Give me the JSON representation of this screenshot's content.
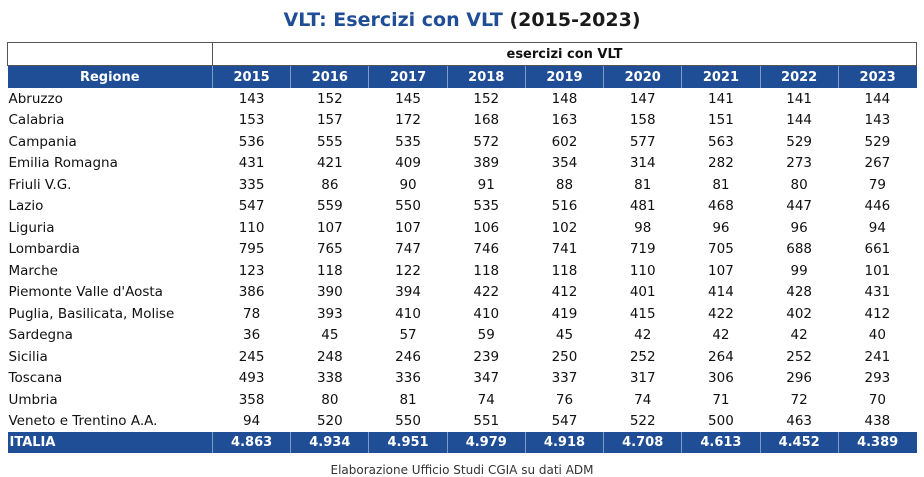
{
  "title": {
    "main": "VLT: Esercizi con VLT",
    "years": "(2015-2023)"
  },
  "table": {
    "band_label": "esercizi con VLT",
    "region_header": "Regione",
    "years": [
      "2015",
      "2016",
      "2017",
      "2018",
      "2019",
      "2020",
      "2021",
      "2022",
      "2023"
    ],
    "rows": [
      {
        "region": "Abruzzo",
        "values": [
          "143",
          "152",
          "145",
          "152",
          "148",
          "147",
          "141",
          "141",
          "144"
        ]
      },
      {
        "region": "Calabria",
        "values": [
          "153",
          "157",
          "172",
          "168",
          "163",
          "158",
          "151",
          "144",
          "143"
        ]
      },
      {
        "region": "Campania",
        "values": [
          "536",
          "555",
          "535",
          "572",
          "602",
          "577",
          "563",
          "529",
          "529"
        ]
      },
      {
        "region": "Emilia Romagna",
        "values": [
          "431",
          "421",
          "409",
          "389",
          "354",
          "314",
          "282",
          "273",
          "267"
        ]
      },
      {
        "region": "Friuli V.G.",
        "values": [
          "335",
          "86",
          "90",
          "91",
          "88",
          "81",
          "81",
          "80",
          "79"
        ]
      },
      {
        "region": "Lazio",
        "values": [
          "547",
          "559",
          "550",
          "535",
          "516",
          "481",
          "468",
          "447",
          "446"
        ]
      },
      {
        "region": "Liguria",
        "values": [
          "110",
          "107",
          "107",
          "106",
          "102",
          "98",
          "96",
          "96",
          "94"
        ]
      },
      {
        "region": "Lombardia",
        "values": [
          "795",
          "765",
          "747",
          "746",
          "741",
          "719",
          "705",
          "688",
          "661"
        ]
      },
      {
        "region": "Marche",
        "values": [
          "123",
          "118",
          "122",
          "118",
          "118",
          "110",
          "107",
          "99",
          "101"
        ]
      },
      {
        "region": "Piemonte Valle d'Aosta",
        "values": [
          "386",
          "390",
          "394",
          "422",
          "412",
          "401",
          "414",
          "428",
          "431"
        ]
      },
      {
        "region": "Puglia, Basilicata, Molise",
        "values": [
          "78",
          "393",
          "410",
          "410",
          "419",
          "415",
          "422",
          "402",
          "412"
        ]
      },
      {
        "region": "Sardegna",
        "values": [
          "36",
          "45",
          "57",
          "59",
          "45",
          "42",
          "42",
          "42",
          "40"
        ]
      },
      {
        "region": "Sicilia",
        "values": [
          "245",
          "248",
          "246",
          "239",
          "250",
          "252",
          "264",
          "252",
          "241"
        ]
      },
      {
        "region": "Toscana",
        "values": [
          "493",
          "338",
          "336",
          "347",
          "337",
          "317",
          "306",
          "296",
          "293"
        ]
      },
      {
        "region": "Umbria",
        "values": [
          "358",
          "80",
          "81",
          "74",
          "76",
          "74",
          "71",
          "72",
          "70"
        ]
      },
      {
        "region": "Veneto e Trentino A.A.",
        "values": [
          "94",
          "520",
          "550",
          "551",
          "547",
          "522",
          "500",
          "463",
          "438"
        ]
      }
    ],
    "total": {
      "region": "ITALIA",
      "values": [
        "4.863",
        "4.934",
        "4.951",
        "4.979",
        "4.918",
        "4.708",
        "4.613",
        "4.452",
        "4.389"
      ]
    }
  },
  "footer": "Elaborazione Ufficio Studi CGIA su dati ADM",
  "colors": {
    "header_blue": "#1f4e96",
    "title_blue": "#1f4e96"
  }
}
